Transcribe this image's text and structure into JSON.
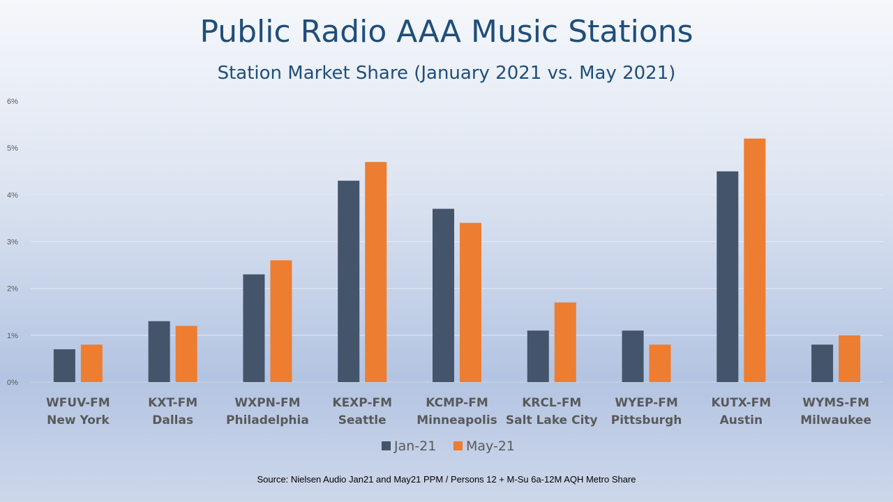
{
  "chart_data": {
    "type": "bar",
    "title": "Public Radio AAA Music Stations",
    "subtitle": "Station Market Share (January 2021 vs. May 2021)",
    "categories": [
      [
        "WFUV-FM",
        "New York"
      ],
      [
        "KXT-FM",
        "Dallas"
      ],
      [
        "WXPN-FM",
        "Philadelphia"
      ],
      [
        "KEXP-FM",
        "Seattle"
      ],
      [
        "KCMP-FM",
        "Minneapolis"
      ],
      [
        "KRCL-FM",
        "Salt Lake City"
      ],
      [
        "WYEP-FM",
        "Pittsburgh"
      ],
      [
        "KUTX-FM",
        "Austin"
      ],
      [
        "WYMS-FM",
        "Milwaukee"
      ]
    ],
    "series": [
      {
        "name": "Jan-21",
        "color": "#44546a",
        "values": [
          0.7,
          1.3,
          2.3,
          4.3,
          3.7,
          1.1,
          1.1,
          4.5,
          0.8
        ]
      },
      {
        "name": "May-21",
        "color": "#ed7d31",
        "values": [
          0.8,
          1.2,
          2.6,
          4.7,
          3.4,
          1.7,
          0.8,
          5.2,
          1.0
        ]
      }
    ],
    "ylim": [
      0,
      6
    ],
    "yticks": [
      "0%",
      "1%",
      "2%",
      "3%",
      "4%",
      "5%",
      "6%"
    ],
    "grid": true,
    "legend_position": "bottom"
  },
  "source_note": "Source: Nielsen Audio Jan21 and May21 PPM / Persons 12 + M-Su 6a-12M AQH Metro Share"
}
